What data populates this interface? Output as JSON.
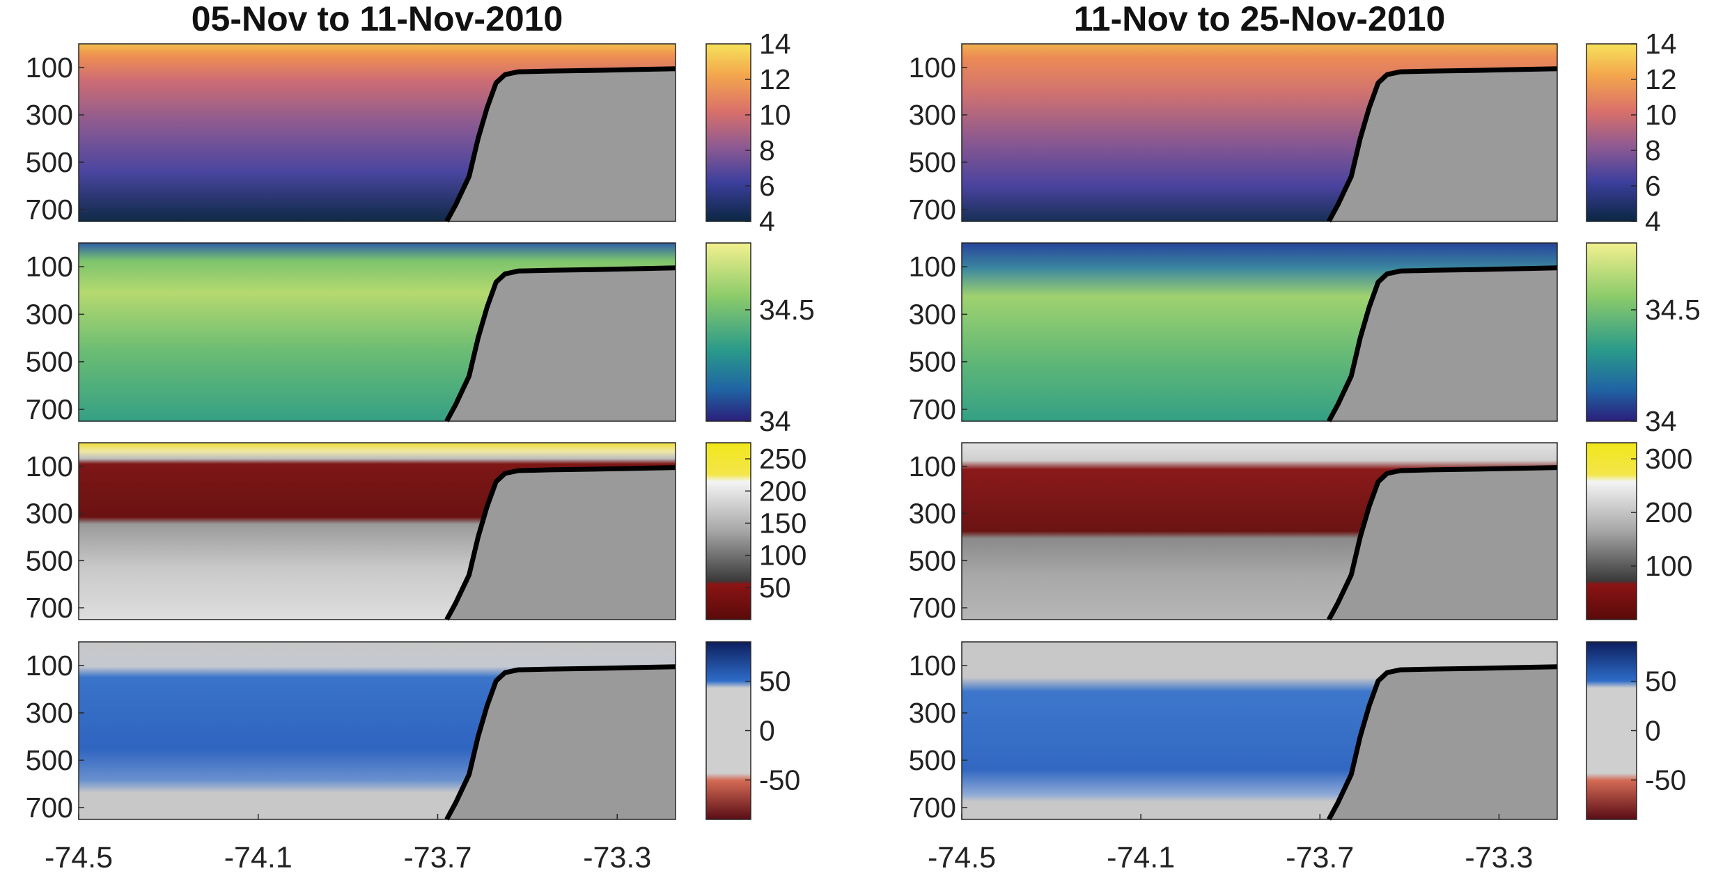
{
  "chart_data": {
    "type": "heatmap",
    "columns": [
      {
        "title": "05-Nov to 11-Nov-2010"
      },
      {
        "title": "11-Nov to 25-Nov-2010"
      }
    ],
    "y_axis": {
      "ticks": [
        "100",
        "300",
        "500",
        "700"
      ],
      "range": [
        0,
        750
      ],
      "reversed": true
    },
    "x_axis": {
      "ticks": [
        "-74.5",
        "-74.1",
        "-73.7",
        "-73.3"
      ],
      "range": [
        -74.5,
        -73.17
      ]
    },
    "shelf_profile": [
      [
        -73.68,
        750
      ],
      [
        -73.66,
        680
      ],
      [
        -73.63,
        560
      ],
      [
        -73.61,
        400
      ],
      [
        -73.59,
        270
      ],
      [
        -73.57,
        165
      ],
      [
        -73.55,
        130
      ],
      [
        -73.52,
        118
      ],
      [
        -73.45,
        115
      ],
      [
        -73.35,
        112
      ],
      [
        -73.25,
        108
      ],
      [
        -73.17,
        105
      ]
    ],
    "rows": [
      {
        "key": "temperature",
        "colormap": "thermal",
        "colorbar": [
          {
            "ticks": [
              "14",
              "12",
              "10",
              "8",
              "6",
              "4"
            ],
            "range": [
              4,
              14
            ]
          },
          {
            "ticks": [
              "14",
              "12",
              "10",
              "8",
              "6",
              "4"
            ],
            "range": [
              4,
              14
            ]
          }
        ]
      },
      {
        "key": "salinity",
        "colormap": "haline",
        "colorbar": [
          {
            "ticks": [
              "34.5",
              "34"
            ],
            "range": [
              34,
              34.8
            ]
          },
          {
            "ticks": [
              "34.5",
              "34"
            ],
            "range": [
              34,
              34.8
            ]
          }
        ]
      },
      {
        "key": "backscatter",
        "colormap": "red-gray-yellow",
        "colorbar": [
          {
            "ticks": [
              "250",
              "200",
              "150",
              "100",
              "50"
            ],
            "range": [
              0,
              275
            ]
          },
          {
            "ticks": [
              "300",
              "200",
              "100"
            ],
            "range": [
              0,
              330
            ]
          }
        ]
      },
      {
        "key": "velocity",
        "colormap": "red-gray-blue",
        "colorbar": [
          {
            "ticks": [
              "50",
              "0",
              "-50"
            ],
            "range": [
              -90,
              90
            ]
          },
          {
            "ticks": [
              "50",
              "0",
              "-50"
            ],
            "range": [
              -90,
              90
            ]
          }
        ]
      }
    ]
  }
}
